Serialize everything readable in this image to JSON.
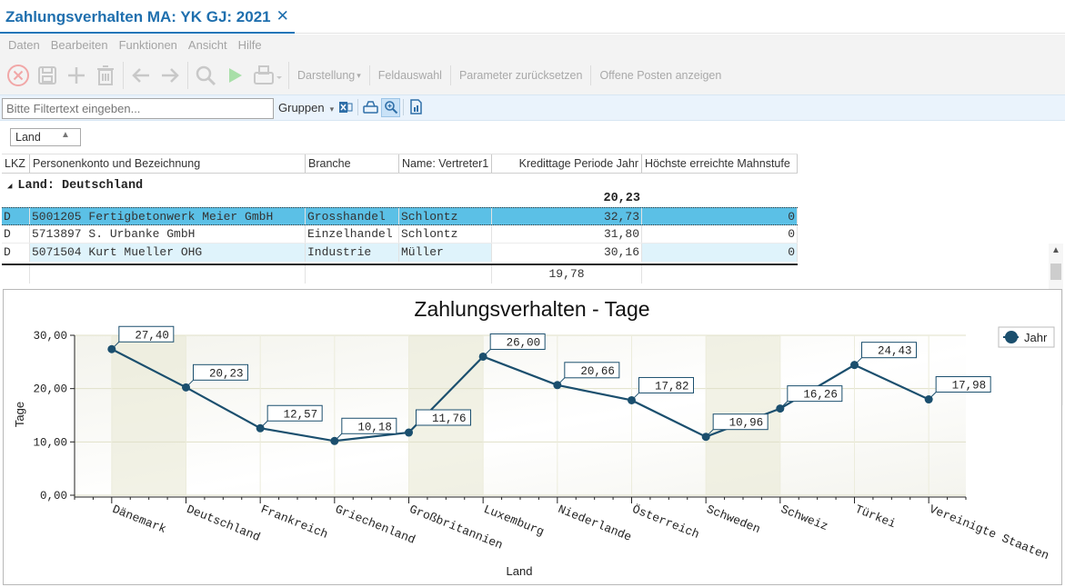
{
  "window": {
    "title": "Zahlungsverhalten MA: YK GJ: 2021"
  },
  "menu": [
    "Daten",
    "Bearbeiten",
    "Funktionen",
    "Ansicht",
    "Hilfe"
  ],
  "toolbar": {
    "darstellung": "Darstellung",
    "feldauswahl": "Feldauswahl",
    "parameter_reset": "Parameter zurücksetzen",
    "offene_posten": "Offene Posten anzeigen"
  },
  "filter": {
    "placeholder": "Bitte Filtertext eingeben...",
    "groups_label": "Gruppen"
  },
  "grid": {
    "group_chip": "Land",
    "columns": [
      "LKZ",
      "Personenkonto und Bezeichnung",
      "Branche",
      "Name: Vertreter1",
      "Kredittage Periode Jahr",
      "Höchste erreichte Mahnstufe"
    ],
    "group_label": "Land: Deutschland",
    "group_sum": "20,23",
    "rows": [
      {
        "lkz": "D",
        "konto": "5001205 Fertigbetonwerk Meier GmbH",
        "branche": "Grosshandel",
        "vertreter": "Schlontz",
        "kredittage": "32,73",
        "mahnstufe": "0"
      },
      {
        "lkz": "D",
        "konto": "5713897 S. Urbanke GmbH",
        "branche": "Einzelhandel",
        "vertreter": "Schlontz",
        "kredittage": "31,80",
        "mahnstufe": "0"
      },
      {
        "lkz": "D",
        "konto": "5071504 Kurt Mueller OHG",
        "branche": "Industrie",
        "vertreter": "Müller",
        "kredittage": "30,16",
        "mahnstufe": "0"
      }
    ],
    "total": "19,78"
  },
  "colors": {
    "accent": "#1f6fae",
    "selected_row": "#5bc0e6",
    "alt_row": "#dff3fb",
    "series": "#1b4f6e"
  },
  "chart_data": {
    "type": "line",
    "title": "Zahlungsverhalten - Tage",
    "xlabel": "Land",
    "ylabel": "Tage",
    "ylim": [
      0,
      30
    ],
    "yticks": [
      "0,00",
      "10,00",
      "20,00",
      "30,00"
    ],
    "categories": [
      "Dänemark",
      "Deutschland",
      "Frankreich",
      "Griechenland",
      "Großbritannien",
      "Luxemburg",
      "Niederlande",
      "Österreich",
      "Schweden",
      "Schweiz",
      "Türkei",
      "Vereinigte Staaten"
    ],
    "series": [
      {
        "name": "Jahr",
        "values": [
          27.4,
          20.23,
          12.57,
          10.18,
          11.76,
          26.0,
          20.66,
          17.82,
          10.96,
          16.26,
          24.43,
          17.98
        ]
      }
    ],
    "data_labels": [
      "27,40",
      "20,23",
      "12,57",
      "10,18",
      "11,76",
      "26,00",
      "20,66",
      "17,82",
      "10,96",
      "16,26",
      "24,43",
      "17,98"
    ],
    "legend_position": "top-right",
    "grid": true
  }
}
